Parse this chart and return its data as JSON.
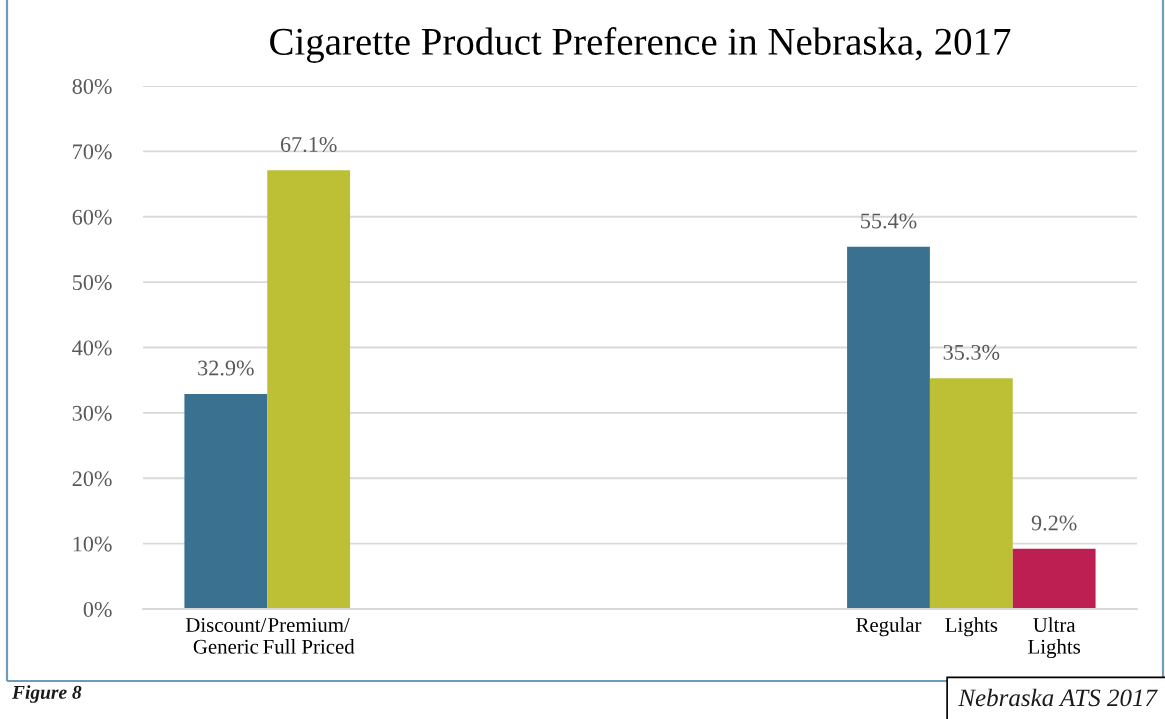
{
  "chart_data": {
    "type": "bar",
    "title": "Cigarette Product Preference in Nebraska, 2017",
    "categories": [
      "Discount/\nGeneric",
      "Premium/\nFull Priced",
      null,
      null,
      null,
      null,
      null,
      null,
      "Regular",
      "Lights",
      "Ultra\nLights"
    ],
    "values": [
      32.9,
      67.1,
      null,
      null,
      null,
      null,
      null,
      null,
      55.4,
      35.3,
      9.2
    ],
    "colors": [
      "#3a7190",
      "#bdc034",
      null,
      null,
      null,
      null,
      null,
      null,
      "#3a7190",
      "#bdc034",
      "#be1f52"
    ],
    "value_labels": [
      "32.9%",
      "67.1%",
      null,
      null,
      null,
      null,
      null,
      null,
      "55.4%",
      "35.3%",
      "9.2%"
    ],
    "ylim": [
      0,
      80
    ],
    "yticks": [
      {
        "value": 0,
        "label": "0%"
      },
      {
        "value": 10,
        "label": "10%"
      },
      {
        "value": 20,
        "label": "20%"
      },
      {
        "value": 30,
        "label": "30%"
      },
      {
        "value": 40,
        "label": "40%"
      },
      {
        "value": 50,
        "label": "50%"
      },
      {
        "value": 60,
        "label": "60%"
      },
      {
        "value": 70,
        "label": "70%"
      },
      {
        "value": 80,
        "label": "80%"
      }
    ],
    "grid": "y",
    "annotations": [
      "Figure 8",
      "Nebraska ATS 2017"
    ]
  }
}
